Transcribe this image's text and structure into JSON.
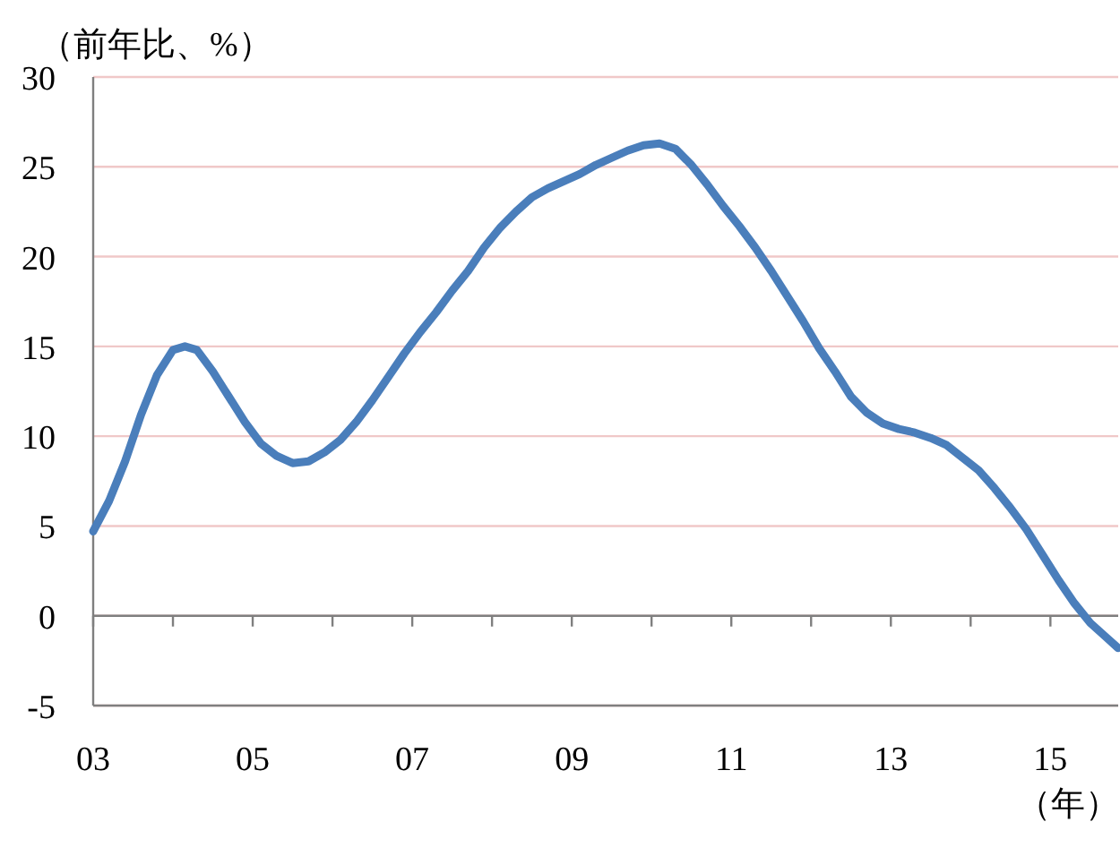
{
  "chart_data": {
    "type": "line",
    "ylabel": "（前年比、%）",
    "xlabel": "（年）",
    "color": "#4a7ebb",
    "grid": "y",
    "xlim": [
      2003,
      2015.85
    ],
    "ylim": [
      -5,
      30
    ],
    "xticks": [
      {
        "value": 2003,
        "label": "03"
      },
      {
        "value": 2004,
        "label": null
      },
      {
        "value": 2005,
        "label": "05"
      },
      {
        "value": 2006,
        "label": null
      },
      {
        "value": 2007,
        "label": "07"
      },
      {
        "value": 2008,
        "label": null
      },
      {
        "value": 2009,
        "label": "09"
      },
      {
        "value": 2010,
        "label": null
      },
      {
        "value": 2011,
        "label": "11"
      },
      {
        "value": 2012,
        "label": null
      },
      {
        "value": 2013,
        "label": "13"
      },
      {
        "value": 2014,
        "label": null
      },
      {
        "value": 2015,
        "label": "15"
      }
    ],
    "yticks": [
      -5,
      0,
      5,
      10,
      15,
      20,
      25,
      30
    ],
    "x": [
      2003.0,
      2003.2,
      2003.4,
      2003.6,
      2003.8,
      2004.0,
      2004.15,
      2004.3,
      2004.5,
      2004.7,
      2004.9,
      2005.1,
      2005.3,
      2005.5,
      2005.7,
      2005.9,
      2006.1,
      2006.3,
      2006.5,
      2006.7,
      2006.9,
      2007.1,
      2007.3,
      2007.5,
      2007.7,
      2007.9,
      2008.1,
      2008.3,
      2008.5,
      2008.7,
      2008.9,
      2009.1,
      2009.3,
      2009.5,
      2009.7,
      2009.9,
      2010.1,
      2010.3,
      2010.5,
      2010.7,
      2010.9,
      2011.1,
      2011.3,
      2011.5,
      2011.7,
      2011.9,
      2012.1,
      2012.3,
      2012.5,
      2012.7,
      2012.9,
      2013.1,
      2013.3,
      2013.5,
      2013.7,
      2013.9,
      2014.1,
      2014.3,
      2014.5,
      2014.7,
      2014.9,
      2015.1,
      2015.3,
      2015.5,
      2015.7,
      2015.85
    ],
    "values": [
      4.7,
      6.4,
      8.6,
      11.2,
      13.4,
      14.8,
      15.0,
      14.8,
      13.6,
      12.2,
      10.8,
      9.6,
      8.9,
      8.5,
      8.6,
      9.1,
      9.8,
      10.8,
      12.0,
      13.3,
      14.6,
      15.8,
      16.9,
      18.1,
      19.2,
      20.5,
      21.6,
      22.5,
      23.3,
      23.8,
      24.2,
      24.6,
      25.1,
      25.5,
      25.9,
      26.2,
      26.3,
      26.0,
      25.1,
      24.0,
      22.8,
      21.7,
      20.5,
      19.2,
      17.8,
      16.4,
      14.9,
      13.6,
      12.2,
      11.3,
      10.7,
      10.4,
      10.2,
      9.9,
      9.5,
      8.8,
      8.1,
      7.1,
      6.0,
      4.8,
      3.4,
      2.0,
      0.7,
      -0.4,
      -1.2,
      -1.8
    ]
  }
}
